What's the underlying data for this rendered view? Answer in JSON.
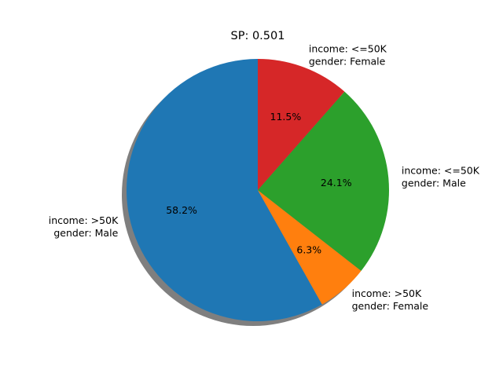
{
  "chart_data": {
    "type": "pie",
    "title": "SP: 0.501",
    "start_angle_deg": 90,
    "direction": "counterclockwise",
    "shadow": true,
    "autopct_format": "%.1f%%",
    "slices": [
      {
        "label_lines": [
          "income: >50K",
          "gender: Male"
        ],
        "value": 58.2,
        "pct_text": "58.2%",
        "color": "#1f77b4"
      },
      {
        "label_lines": [
          "income: >50K",
          "gender: Female"
        ],
        "value": 6.3,
        "pct_text": "6.3%",
        "color": "#ff7f0e"
      },
      {
        "label_lines": [
          "income: <=50K",
          "gender: Male"
        ],
        "value": 24.1,
        "pct_text": "24.1%",
        "color": "#2ca02c"
      },
      {
        "label_lines": [
          "income: <=50K",
          "gender: Female"
        ],
        "value": 11.5,
        "pct_text": "11.5%",
        "color": "#d62728"
      }
    ],
    "shadow_color": "#7f7f7f"
  }
}
